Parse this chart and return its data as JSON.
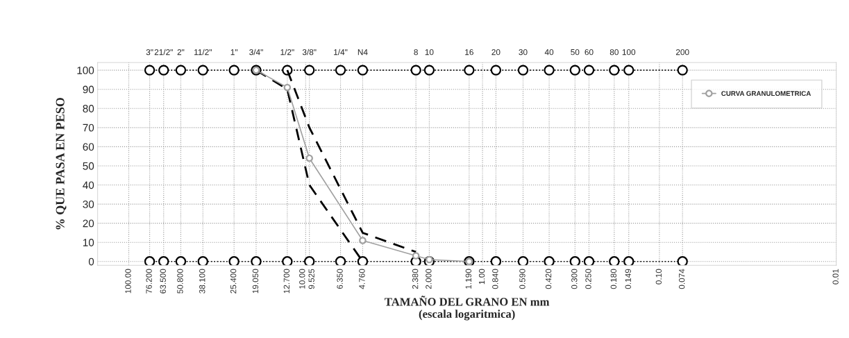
{
  "chart_data": {
    "type": "line",
    "xlabel": "TAMAÑO DEL GRANO EN mm\n(escala logaritmica)",
    "ylabel": "% QUE PASA EN PESO",
    "log": "x",
    "xlim": [
      150,
      0.01
    ],
    "xticks": [
      {
        "value": 100,
        "label": "100.00"
      },
      {
        "value": 76.2,
        "label": "76.200"
      },
      {
        "value": 63.5,
        "label": "63.500"
      },
      {
        "value": 50.8,
        "label": "50.800"
      },
      {
        "value": 38.1,
        "label": "38.100"
      },
      {
        "value": 25.4,
        "label": "25.400"
      },
      {
        "value": 19.05,
        "label": "19.050"
      },
      {
        "value": 12.7,
        "label": "12.700"
      },
      {
        "value": 10,
        "label": "10.00"
      },
      {
        "value": 9.525,
        "label": "9.525"
      },
      {
        "value": 6.35,
        "label": "6.350"
      },
      {
        "value": 4.76,
        "label": "4.760"
      },
      {
        "value": 2.38,
        "label": "2.380"
      },
      {
        "value": 2,
        "label": "2.000"
      },
      {
        "value": 1.19,
        "label": "1.190"
      },
      {
        "value": 1,
        "label": "1.00"
      },
      {
        "value": 0.84,
        "label": "0.840"
      },
      {
        "value": 0.59,
        "label": "0.590"
      },
      {
        "value": 0.42,
        "label": "0.420"
      },
      {
        "value": 0.3,
        "label": "0.300"
      },
      {
        "value": 0.25,
        "label": "0.250"
      },
      {
        "value": 0.18,
        "label": "0.180"
      },
      {
        "value": 0.149,
        "label": "0.149"
      },
      {
        "value": 0.1,
        "label": "0.10"
      },
      {
        "value": 0.074,
        "label": "0.074"
      },
      {
        "value": 0.01,
        "label": "0.01"
      }
    ],
    "annotations": [
      {
        "text": "3\"",
        "x": 76.2,
        "y": 100
      },
      {
        "text": "21/2\"",
        "x": 63.5,
        "y": 100
      },
      {
        "text": "2\"",
        "x": 50.8,
        "y": 100
      },
      {
        "text": "11/2\"",
        "x": 38.1,
        "y": 100
      },
      {
        "text": "1\"",
        "x": 25.4,
        "y": 100
      },
      {
        "text": "3/4\"",
        "x": 19.05,
        "y": 100
      },
      {
        "text": "1/2\"",
        "x": 12.7,
        "y": 100
      },
      {
        "text": "3/8\"",
        "x": 9.525,
        "y": 100
      },
      {
        "text": "1/4\"",
        "x": 6.35,
        "y": 100
      },
      {
        "text": "N4",
        "x": 4.76,
        "y": 100
      },
      {
        "text": "8",
        "x": 2.38,
        "y": 100
      },
      {
        "text": "10",
        "x": 2,
        "y": 100
      },
      {
        "text": "16",
        "x": 1.19,
        "y": 100
      },
      {
        "text": "20",
        "x": 0.84,
        "y": 100
      },
      {
        "text": "30",
        "x": 0.59,
        "y": 100
      },
      {
        "text": "40",
        "x": 0.42,
        "y": 100
      },
      {
        "text": "50",
        "x": 0.3,
        "y": 100
      },
      {
        "text": "60",
        "x": 0.25,
        "y": 100
      },
      {
        "text": "80",
        "x": 0.18,
        "y": 100
      },
      {
        "text": "100",
        "x": 0.149,
        "y": 100
      },
      {
        "text": "200",
        "x": 0.074,
        "y": 100
      }
    ],
    "ylim": [
      -2,
      104
    ],
    "yticks": [
      0,
      10,
      20,
      30,
      40,
      50,
      60,
      70,
      80,
      90,
      100
    ],
    "grid": true,
    "legend": "top right",
    "series": [
      {
        "color": "#000000",
        "marker": "circle",
        "line_style": "dotted",
        "x": [
          76.2,
          63.5,
          50.8,
          38.1,
          25.4,
          19.05,
          12.7,
          9.525,
          6.35,
          4.76,
          2.38,
          2,
          1.19,
          0.84,
          0.59,
          0.42,
          0.3,
          0.25,
          0.18,
          0.149,
          0.074
        ],
        "values": [
          100,
          100,
          100,
          100,
          100,
          100,
          100,
          100,
          100,
          100,
          100,
          100,
          100,
          100,
          100,
          100,
          100,
          100,
          100,
          100,
          100
        ]
      },
      {
        "color": "#000000",
        "marker": "circle",
        "line_style": "dotted",
        "x": [
          76.2,
          63.5,
          50.8,
          38.1,
          25.4,
          19.05,
          12.7,
          9.525,
          6.35,
          4.76,
          2.38,
          2,
          1.19,
          0.84,
          0.59,
          0.42,
          0.3,
          0.25,
          0.18,
          0.149,
          0.074
        ],
        "values": [
          0,
          0,
          0,
          0,
          0,
          0,
          0,
          0,
          0,
          0,
          0,
          0,
          0,
          0,
          0,
          0,
          0,
          0,
          0,
          0,
          0
        ]
      },
      {
        "color": "#000000",
        "marker": "none",
        "line_style": "dashed",
        "x": [
          19.05,
          12.7,
          9.525,
          4.76
        ],
        "values": [
          100,
          90,
          40,
          0
        ]
      },
      {
        "color": "#000000",
        "marker": "none",
        "line_style": "dashed",
        "x": [
          12.7,
          9.525,
          4.76,
          2.38
        ],
        "values": [
          100,
          70,
          15,
          5
        ]
      },
      {
        "name": "CURVA GRANULOMETRICA",
        "color": "#a0a0a0",
        "marker": "circle",
        "line_style": "solid",
        "x": [
          19.05,
          12.7,
          9.525,
          4.76,
          2.38,
          2,
          1.19
        ],
        "values": [
          100,
          91,
          54,
          11,
          3,
          1,
          0
        ]
      }
    ]
  }
}
